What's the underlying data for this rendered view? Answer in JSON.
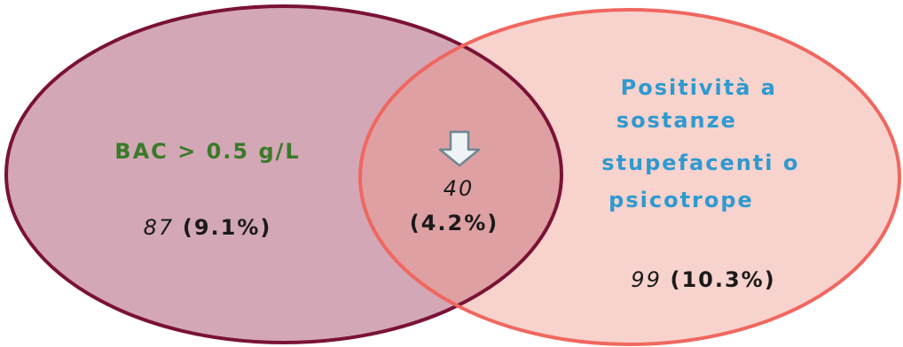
{
  "venn": {
    "set_a": {
      "label": "BAC > 0.5 g/L",
      "count": "87",
      "percent": "(9.1%)",
      "fill_color": "#d3a7b6",
      "stroke_color": "#7a1236",
      "label_color": "#3a7a28"
    },
    "set_b": {
      "label_lines": [
        "Positività a",
        "sostanze",
        "stupefacenti o",
        "psicotrope"
      ],
      "count": "99",
      "percent": "(10.3%)",
      "fill_color": "#f8d2cc",
      "stroke_color": "#f0675f",
      "label_color": "#2e9ad0"
    },
    "intersection": {
      "count": "40",
      "percent": "(4.2%)",
      "fill_color": "#dea0a3",
      "arrow_icon": "down-arrow-icon",
      "arrow_fill": "#eef3f6",
      "arrow_stroke": "#6e8794"
    }
  }
}
